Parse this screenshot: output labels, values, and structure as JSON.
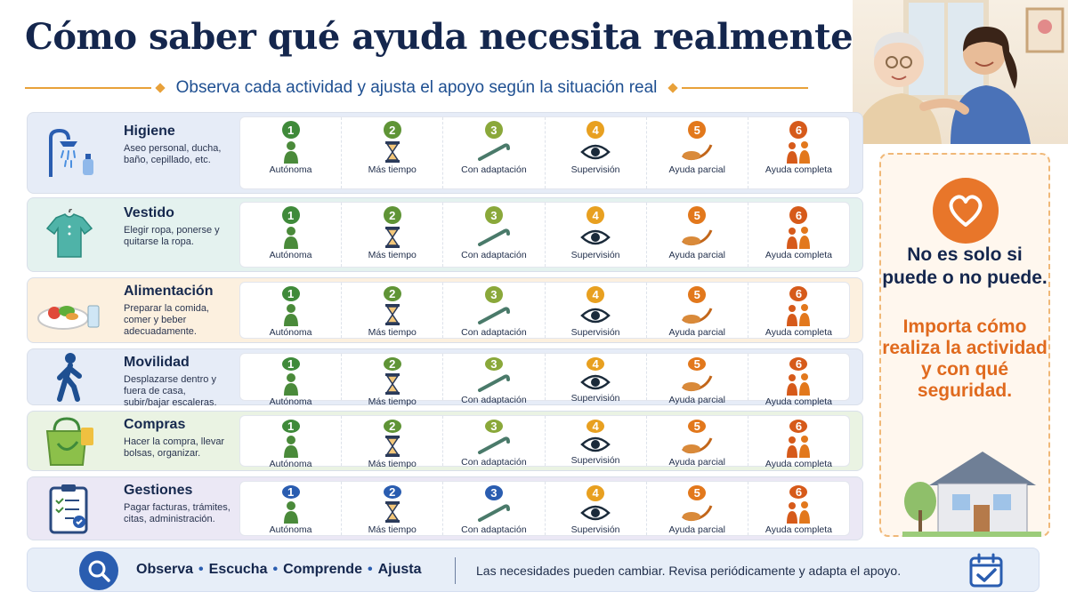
{
  "title": "Cómo saber qué ayuda necesita realmente",
  "subtitle": "Observa cada actividad y ajusta el apoyo según la situación real",
  "level_labels": [
    "Autónoma",
    "Más tiempo",
    "Con adaptación",
    "Supervisión",
    "Ayuda parcial",
    "Ayuda completa"
  ],
  "level_numbers": [
    "1",
    "2",
    "3",
    "4",
    "5",
    "6"
  ],
  "categories": [
    {
      "name": "Higiene",
      "desc": "Aseo personal, ducha, baño, cepillado, etc.",
      "icon": "shower-icon",
      "bg": "#e6ecf7"
    },
    {
      "name": "Vestido",
      "desc": "Elegir ropa, ponerse y quitarse la ropa.",
      "icon": "shirt-icon",
      "bg": "#e4f2ef"
    },
    {
      "name": "Alimentación",
      "desc": "Preparar la comida, comer y beber adecuadamente.",
      "icon": "food-plate-icon",
      "bg": "#fcf0df"
    },
    {
      "name": "Movilidad",
      "desc": "Desplazarse dentro y fuera de casa, subir/bajar escaleras.",
      "icon": "walking-person-icon",
      "bg": "#e6ecf7"
    },
    {
      "name": "Compras",
      "desc": "Hacer la compra, llevar bolsas, organizar.",
      "icon": "shopping-bag-icon",
      "bg": "#eaf3e3"
    },
    {
      "name": "Gestiones",
      "desc": "Pagar facturas, trámites, citas, administración.",
      "icon": "clipboard-icon",
      "bg": "#ebe8f5"
    }
  ],
  "side_panel": {
    "statement": "No es solo si puede o no puede.",
    "emphasis": "Importa cómo realiza la actividad y con qué seguridad."
  },
  "footer": {
    "words": [
      "Observa",
      "Escucha",
      "Comprende",
      "Ajusta"
    ],
    "note": "Las necesidades pueden cambiar. Revisa periódicamente y adapta el apoyo."
  },
  "colors": {
    "navy": "#14264d",
    "orange": "#e06a1e",
    "green": "#3f8a3a"
  }
}
